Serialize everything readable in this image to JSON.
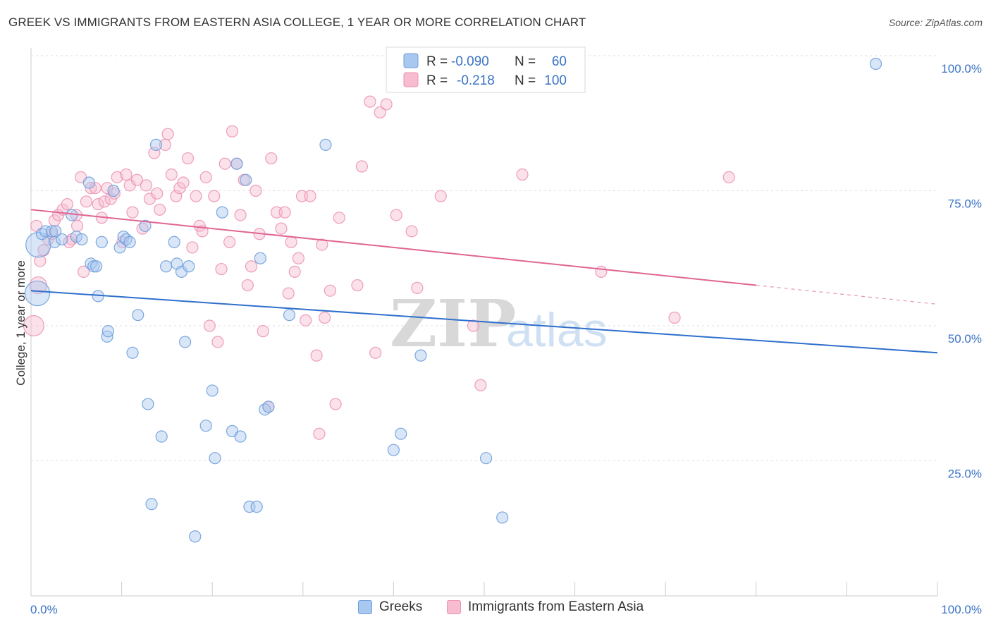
{
  "title": "GREEK VS IMMIGRANTS FROM EASTERN ASIA COLLEGE, 1 YEAR OR MORE CORRELATION CHART",
  "source": "Source: ZipAtlas.com",
  "watermark": {
    "zip": "ZIP",
    "atlas": "atlas"
  },
  "colors": {
    "greeks_fill": "#a9c8f0",
    "greeks_stroke": "#6f9fdb",
    "greeks_line": "#2f6fcc",
    "imm_fill": "#f7bcd0",
    "imm_stroke": "#ec93b2",
    "imm_line": "#e06593",
    "tick_blue": "#3a73c5",
    "grid": "#dddddd"
  },
  "legend_box": {
    "rows": [
      {
        "r_label": "R = ",
        "r_value": "-0.090",
        "n_label": "N = ",
        "n_value": "60"
      },
      {
        "r_label": "R = ",
        "r_value": "-0.218",
        "n_label": "N = ",
        "n_value": "100"
      }
    ]
  },
  "bottom_legend": {
    "greeks": "Greeks",
    "immigrants": "Immigrants from Eastern Asia"
  },
  "chart_data": {
    "type": "scatter",
    "title": "GREEK VS IMMIGRANTS FROM EASTERN ASIA COLLEGE, 1 YEAR OR MORE CORRELATION CHART",
    "xlabel": "",
    "ylabel": "College, 1 year or more",
    "xlim": [
      0,
      100
    ],
    "ylim": [
      0,
      102
    ],
    "x_tick_labels": [
      "0.0%",
      "100.0%"
    ],
    "y_ticks": [
      25,
      50,
      75,
      100
    ],
    "y_tick_labels": [
      "25.0%",
      "50.0%",
      "75.0%",
      "100.0%"
    ],
    "grid": true,
    "legend_position": "top-center",
    "series": [
      {
        "name": "Greeks",
        "r": -0.09,
        "n": 60,
        "trend": {
          "x": [
            0,
            100
          ],
          "y": [
            56.5,
            45.0
          ]
        },
        "points": [
          [
            0.8,
            65.0,
            2.2
          ],
          [
            1.2,
            67.0,
            1
          ],
          [
            1.6,
            67.5,
            1
          ],
          [
            2.3,
            67.5,
            1
          ],
          [
            2.6,
            65.5,
            1
          ],
          [
            3.4,
            66.0,
            1
          ],
          [
            4.5,
            70.5,
            1
          ],
          [
            5.0,
            66.5,
            1
          ],
          [
            5.6,
            66.0,
            1
          ],
          [
            6.4,
            76.5,
            1
          ],
          [
            6.6,
            61.5,
            1
          ],
          [
            6.9,
            61.0,
            1
          ],
          [
            7.2,
            61.0,
            1
          ],
          [
            7.4,
            55.5,
            1
          ],
          [
            7.8,
            65.5,
            1
          ],
          [
            8.4,
            48.0,
            1
          ],
          [
            8.5,
            49.0,
            1
          ],
          [
            9.1,
            75.0,
            1
          ],
          [
            9.8,
            64.5,
            1
          ],
          [
            10.2,
            66.5,
            1
          ],
          [
            10.5,
            66.0,
            1
          ],
          [
            10.9,
            65.5,
            1
          ],
          [
            11.2,
            45.0,
            1
          ],
          [
            11.8,
            52.0,
            1
          ],
          [
            12.6,
            68.5,
            1
          ],
          [
            12.9,
            35.5,
            1
          ],
          [
            13.3,
            17.0,
            1
          ],
          [
            13.8,
            83.5,
            1
          ],
          [
            14.4,
            29.5,
            1
          ],
          [
            14.9,
            61.0,
            1
          ],
          [
            15.8,
            65.5,
            1
          ],
          [
            16.1,
            61.5,
            1
          ],
          [
            16.6,
            60.0,
            1
          ],
          [
            17.0,
            47.0,
            1
          ],
          [
            17.4,
            61.0,
            1
          ],
          [
            18.1,
            11.0,
            1
          ],
          [
            19.3,
            31.5,
            1
          ],
          [
            20.0,
            38.0,
            1
          ],
          [
            20.3,
            25.5,
            1
          ],
          [
            21.1,
            71.0,
            1
          ],
          [
            22.2,
            30.5,
            1
          ],
          [
            22.7,
            80.0,
            1
          ],
          [
            23.1,
            29.5,
            1
          ],
          [
            23.7,
            77.0,
            1
          ],
          [
            24.1,
            16.5,
            1
          ],
          [
            24.9,
            16.5,
            1
          ],
          [
            25.3,
            62.5,
            1
          ],
          [
            25.8,
            34.5,
            1
          ],
          [
            26.2,
            35.0,
            1
          ],
          [
            28.5,
            52.0,
            1
          ],
          [
            32.5,
            83.5,
            1
          ],
          [
            40.0,
            27.0,
            1
          ],
          [
            40.8,
            30.0,
            1
          ],
          [
            43.0,
            44.5,
            1
          ],
          [
            50.2,
            25.5,
            1
          ],
          [
            52.0,
            14.5,
            1
          ],
          [
            56.7,
            100.0,
            1
          ],
          [
            93.2,
            98.5,
            1
          ],
          [
            0.7,
            56.0,
            2.2
          ],
          [
            2.7,
            67.5,
            1
          ]
        ]
      },
      {
        "name": "Immigrants from Eastern Asia",
        "r": -0.218,
        "n": 100,
        "trend": {
          "x": [
            0,
            80
          ],
          "y": [
            71.5,
            57.5
          ]
        },
        "trend_dashed": {
          "x": [
            80,
            100
          ],
          "y": [
            57.5,
            54.0
          ]
        },
        "points": [
          [
            0.3,
            50.0,
            1.8
          ],
          [
            0.8,
            57.5,
            1.5
          ],
          [
            1.0,
            62.0,
            1
          ],
          [
            1.4,
            64.0,
            1
          ],
          [
            1.9,
            66.0,
            1
          ],
          [
            2.3,
            67.0,
            1
          ],
          [
            2.6,
            69.5,
            1
          ],
          [
            3.0,
            70.5,
            1
          ],
          [
            3.5,
            71.5,
            1
          ],
          [
            4.0,
            72.5,
            1
          ],
          [
            4.5,
            66.0,
            1
          ],
          [
            5.0,
            70.5,
            1
          ],
          [
            5.1,
            68.5,
            1
          ],
          [
            5.5,
            77.5,
            1
          ],
          [
            5.8,
            60.0,
            1
          ],
          [
            6.1,
            73.0,
            1
          ],
          [
            6.6,
            75.5,
            1
          ],
          [
            7.1,
            75.5,
            1
          ],
          [
            7.4,
            72.5,
            1
          ],
          [
            7.8,
            70.0,
            1
          ],
          [
            8.1,
            73.0,
            1
          ],
          [
            8.4,
            75.5,
            1
          ],
          [
            8.8,
            73.5,
            1
          ],
          [
            9.2,
            74.5,
            1
          ],
          [
            9.5,
            77.5,
            1
          ],
          [
            10.1,
            65.5,
            1
          ],
          [
            10.5,
            78.0,
            1
          ],
          [
            10.9,
            76.0,
            1
          ],
          [
            11.2,
            71.0,
            1
          ],
          [
            11.7,
            77.0,
            1
          ],
          [
            12.3,
            68.0,
            1
          ],
          [
            12.7,
            76.0,
            1
          ],
          [
            13.1,
            73.5,
            1
          ],
          [
            13.6,
            82.0,
            1
          ],
          [
            13.9,
            74.5,
            1
          ],
          [
            14.2,
            71.5,
            1
          ],
          [
            14.8,
            83.5,
            1
          ],
          [
            15.1,
            85.5,
            1
          ],
          [
            15.5,
            78.0,
            1
          ],
          [
            16.0,
            74.0,
            1
          ],
          [
            16.4,
            75.5,
            1
          ],
          [
            16.8,
            76.5,
            1
          ],
          [
            17.3,
            81.0,
            1
          ],
          [
            17.8,
            64.5,
            1
          ],
          [
            18.2,
            74.0,
            1
          ],
          [
            18.6,
            68.5,
            1
          ],
          [
            18.9,
            67.5,
            1
          ],
          [
            19.3,
            77.5,
            1
          ],
          [
            19.7,
            50.0,
            1
          ],
          [
            20.2,
            74.0,
            1
          ],
          [
            20.6,
            47.0,
            1
          ],
          [
            21.0,
            60.5,
            1
          ],
          [
            21.4,
            80.0,
            1
          ],
          [
            21.9,
            65.5,
            1
          ],
          [
            22.2,
            86.0,
            1
          ],
          [
            22.7,
            80.0,
            1
          ],
          [
            23.1,
            70.5,
            1
          ],
          [
            23.5,
            77.0,
            1
          ],
          [
            23.9,
            57.5,
            1
          ],
          [
            24.3,
            61.0,
            1
          ],
          [
            24.8,
            75.0,
            1
          ],
          [
            25.2,
            67.0,
            1
          ],
          [
            25.6,
            49.0,
            1
          ],
          [
            26.2,
            35.0,
            1
          ],
          [
            26.5,
            81.0,
            1
          ],
          [
            27.1,
            71.0,
            1
          ],
          [
            27.6,
            68.0,
            1
          ],
          [
            28.0,
            71.0,
            1
          ],
          [
            28.4,
            56.0,
            1
          ],
          [
            28.7,
            65.5,
            1
          ],
          [
            29.1,
            60.0,
            1
          ],
          [
            29.5,
            62.5,
            1
          ],
          [
            29.9,
            74.0,
            1
          ],
          [
            30.3,
            51.0,
            1
          ],
          [
            30.8,
            74.0,
            1
          ],
          [
            31.5,
            44.5,
            1
          ],
          [
            31.8,
            30.0,
            1
          ],
          [
            32.1,
            65.0,
            1
          ],
          [
            32.4,
            51.5,
            1
          ],
          [
            33.0,
            56.5,
            1
          ],
          [
            33.6,
            35.5,
            1
          ],
          [
            34.0,
            70.0,
            1
          ],
          [
            36.0,
            57.5,
            1
          ],
          [
            36.5,
            79.5,
            1
          ],
          [
            37.4,
            91.5,
            1
          ],
          [
            38.0,
            45.0,
            1
          ],
          [
            38.5,
            89.5,
            1
          ],
          [
            39.2,
            91.0,
            1
          ],
          [
            40.3,
            70.5,
            1
          ],
          [
            42.0,
            67.5,
            1
          ],
          [
            42.6,
            57.0,
            1
          ],
          [
            45.2,
            74.0,
            1
          ],
          [
            48.8,
            50.0,
            1
          ],
          [
            49.6,
            39.0,
            1
          ],
          [
            54.2,
            78.0,
            1
          ],
          [
            62.9,
            60.0,
            1
          ],
          [
            71.0,
            51.5,
            1
          ],
          [
            77.0,
            77.5,
            1
          ],
          [
            0.6,
            68.5,
            1
          ],
          [
            4.2,
            65.5,
            1
          ]
        ]
      }
    ]
  }
}
